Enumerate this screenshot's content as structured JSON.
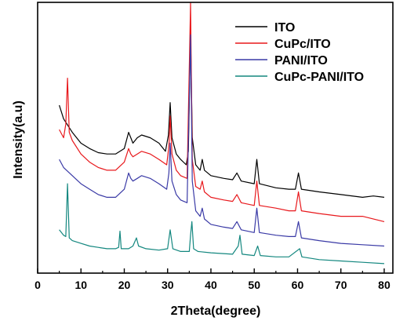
{
  "chart_data": {
    "type": "line",
    "title": "",
    "xlabel": "2Theta(degree)",
    "ylabel": "Intensity(a.u)",
    "xlim": [
      0,
      82
    ],
    "ylim": [
      0,
      100
    ],
    "x_ticks": [
      0,
      10,
      20,
      30,
      40,
      50,
      60,
      70,
      80
    ],
    "y_ticks_shown": false,
    "grid": false,
    "legend_position": "top-right",
    "series": [
      {
        "name": "ITO",
        "color": "#000000",
        "points": [
          [
            5,
            62
          ],
          [
            6,
            57
          ],
          [
            8,
            52
          ],
          [
            10,
            48
          ],
          [
            12,
            46
          ],
          [
            14,
            44.5
          ],
          [
            16,
            44
          ],
          [
            18,
            44
          ],
          [
            20,
            46
          ],
          [
            21,
            52
          ],
          [
            21.5,
            50
          ],
          [
            22,
            48
          ],
          [
            23,
            50
          ],
          [
            24,
            51
          ],
          [
            26,
            50
          ],
          [
            28,
            48
          ],
          [
            29.5,
            45
          ],
          [
            30.2,
            51
          ],
          [
            30.6,
            63
          ],
          [
            31,
            50
          ],
          [
            32,
            44
          ],
          [
            33,
            42
          ],
          [
            34.3,
            40
          ],
          [
            34.8,
            45
          ],
          [
            35.3,
            88
          ],
          [
            35.7,
            50
          ],
          [
            36.5,
            40
          ],
          [
            37.5,
            38
          ],
          [
            38,
            42
          ],
          [
            38.5,
            38
          ],
          [
            40,
            36
          ],
          [
            43,
            35
          ],
          [
            45,
            34.5
          ],
          [
            46,
            37
          ],
          [
            47,
            34
          ],
          [
            50,
            33
          ],
          [
            50.6,
            42
          ],
          [
            51.2,
            33
          ],
          [
            55,
            31.5
          ],
          [
            58,
            31
          ],
          [
            59.5,
            31
          ],
          [
            60.2,
            37
          ],
          [
            60.9,
            31
          ],
          [
            65,
            30
          ],
          [
            70,
            29
          ],
          [
            75,
            28
          ],
          [
            77.5,
            28.5
          ],
          [
            80,
            28
          ]
        ]
      },
      {
        "name": "CuPc/ITO",
        "color": "#e8181c",
        "points": [
          [
            5,
            53
          ],
          [
            6,
            50
          ],
          [
            6.5,
            55
          ],
          [
            6.9,
            72
          ],
          [
            7.3,
            52
          ],
          [
            8,
            49
          ],
          [
            10,
            44
          ],
          [
            12,
            41
          ],
          [
            14,
            39
          ],
          [
            16,
            38
          ],
          [
            18,
            38
          ],
          [
            20,
            41
          ],
          [
            21,
            46
          ],
          [
            21.5,
            44
          ],
          [
            22,
            43
          ],
          [
            23,
            44
          ],
          [
            24,
            45
          ],
          [
            26,
            44
          ],
          [
            28,
            42
          ],
          [
            29.8,
            40
          ],
          [
            30.3,
            47
          ],
          [
            30.6,
            58
          ],
          [
            31,
            44
          ],
          [
            32,
            38
          ],
          [
            33,
            36
          ],
          [
            34.5,
            35
          ],
          [
            35.3,
            103
          ],
          [
            35.7,
            42
          ],
          [
            36.5,
            32
          ],
          [
            37.5,
            31
          ],
          [
            38,
            34
          ],
          [
            38.5,
            30
          ],
          [
            40,
            28
          ],
          [
            43,
            27
          ],
          [
            45,
            26.5
          ],
          [
            46,
            29
          ],
          [
            47,
            26
          ],
          [
            50,
            25
          ],
          [
            50.6,
            34
          ],
          [
            51.2,
            25
          ],
          [
            55,
            24
          ],
          [
            58,
            23
          ],
          [
            59.5,
            23
          ],
          [
            60.2,
            30
          ],
          [
            60.9,
            23
          ],
          [
            65,
            22
          ],
          [
            70,
            21
          ],
          [
            75,
            21
          ],
          [
            80,
            19
          ]
        ]
      },
      {
        "name": "PANI/ITO",
        "color": "#3a3aa6",
        "points": [
          [
            5,
            42
          ],
          [
            6,
            39
          ],
          [
            8,
            36
          ],
          [
            10,
            33
          ],
          [
            12,
            31
          ],
          [
            14,
            29
          ],
          [
            16,
            28
          ],
          [
            18,
            28
          ],
          [
            20,
            31
          ],
          [
            21,
            37
          ],
          [
            21.5,
            35
          ],
          [
            22,
            34
          ],
          [
            23,
            35
          ],
          [
            24,
            36
          ],
          [
            26,
            35
          ],
          [
            28,
            33
          ],
          [
            29.8,
            31
          ],
          [
            30.3,
            37
          ],
          [
            30.6,
            48
          ],
          [
            31,
            34
          ],
          [
            32,
            29
          ],
          [
            33,
            27
          ],
          [
            34.5,
            26
          ],
          [
            35.3,
            88
          ],
          [
            35.7,
            34
          ],
          [
            36.5,
            23
          ],
          [
            37.5,
            21
          ],
          [
            38,
            24
          ],
          [
            38.5,
            20
          ],
          [
            40,
            18
          ],
          [
            43,
            17
          ],
          [
            45,
            16.5
          ],
          [
            46,
            19
          ],
          [
            47,
            16
          ],
          [
            50,
            15
          ],
          [
            50.6,
            24
          ],
          [
            51.2,
            15
          ],
          [
            55,
            14
          ],
          [
            58,
            13.5
          ],
          [
            59.5,
            13.5
          ],
          [
            60.2,
            19
          ],
          [
            60.9,
            13
          ],
          [
            65,
            12
          ],
          [
            70,
            11
          ],
          [
            75,
            10.5
          ],
          [
            80,
            10
          ]
        ]
      },
      {
        "name": "CuPc-PANI/ITO",
        "color": "#13877f",
        "points": [
          [
            5,
            16
          ],
          [
            6,
            14
          ],
          [
            6.5,
            13.5
          ],
          [
            6.9,
            33
          ],
          [
            7.3,
            13
          ],
          [
            8,
            12
          ],
          [
            10,
            11
          ],
          [
            12,
            10
          ],
          [
            14,
            9.5
          ],
          [
            16,
            9
          ],
          [
            18,
            9
          ],
          [
            18.7,
            9.5
          ],
          [
            19,
            15.5
          ],
          [
            19.3,
            9
          ],
          [
            21,
            9
          ],
          [
            22,
            10
          ],
          [
            22.8,
            13
          ],
          [
            23.3,
            10
          ],
          [
            25,
            9
          ],
          [
            28,
            8.5
          ],
          [
            30,
            9
          ],
          [
            30.6,
            16
          ],
          [
            31.2,
            9
          ],
          [
            33,
            8
          ],
          [
            35,
            8
          ],
          [
            35.3,
            14
          ],
          [
            35.6,
            19
          ],
          [
            36,
            9
          ],
          [
            37,
            8
          ],
          [
            40,
            7.5
          ],
          [
            45,
            7
          ],
          [
            46.3,
            10
          ],
          [
            46.7,
            14
          ],
          [
            47.2,
            7
          ],
          [
            50,
            6.5
          ],
          [
            50.8,
            10
          ],
          [
            51.4,
            6.5
          ],
          [
            55,
            6
          ],
          [
            58,
            6
          ],
          [
            60.5,
            9
          ],
          [
            61,
            6
          ],
          [
            65,
            5
          ],
          [
            70,
            4.5
          ],
          [
            75,
            4
          ],
          [
            80,
            3.5
          ]
        ]
      }
    ]
  }
}
